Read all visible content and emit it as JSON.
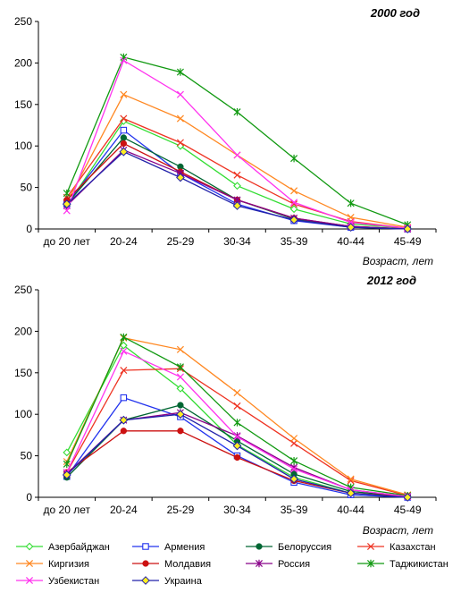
{
  "chart_data": [
    {
      "type": "line",
      "title": "2000 год",
      "xlabel": "Возраст, лет",
      "ylabel": "",
      "categories": [
        "до 20 лет",
        "20-24",
        "25-29",
        "30-34",
        "35-39",
        "40-44",
        "45-49"
      ],
      "ylim": [
        0,
        250
      ],
      "yticks": [
        0,
        50,
        100,
        150,
        200,
        250
      ],
      "series": [
        {
          "name": "Азербайджан",
          "values": [
            28,
            130,
            100,
            52,
            24,
            6,
            1
          ]
        },
        {
          "name": "Армения",
          "values": [
            30,
            119,
            67,
            30,
            10,
            2,
            0
          ]
        },
        {
          "name": "Белоруссия",
          "values": [
            30,
            110,
            75,
            35,
            12,
            3,
            0
          ]
        },
        {
          "name": "Казахстан",
          "values": [
            38,
            133,
            104,
            65,
            30,
            9,
            1
          ]
        },
        {
          "name": "Киргизия",
          "values": [
            32,
            162,
            133,
            89,
            46,
            14,
            2
          ]
        },
        {
          "name": "Молдавия",
          "values": [
            35,
            103,
            69,
            35,
            13,
            3,
            0
          ]
        },
        {
          "name": "Россия",
          "values": [
            28,
            95,
            67,
            35,
            13,
            3,
            0
          ]
        },
        {
          "name": "Таджикистан",
          "values": [
            43,
            207,
            189,
            141,
            85,
            31,
            5
          ]
        },
        {
          "name": "Узбекистан",
          "values": [
            22,
            203,
            162,
            89,
            32,
            8,
            1
          ]
        },
        {
          "name": "Украина",
          "values": [
            30,
            93,
            62,
            28,
            11,
            2,
            0
          ]
        }
      ]
    },
    {
      "type": "line",
      "title": "2012 год",
      "xlabel": "Возраст, лет",
      "ylabel": "",
      "categories": [
        "до 20 лет",
        "20-24",
        "25-29",
        "30-34",
        "35-39",
        "40-44",
        "45-49"
      ],
      "ylim": [
        0,
        250
      ],
      "yticks": [
        0,
        50,
        100,
        150,
        200,
        250
      ],
      "series": [
        {
          "name": "Азербайджан",
          "values": [
            54,
            183,
            131,
            63,
            24,
            5,
            1
          ]
        },
        {
          "name": "Армения",
          "values": [
            25,
            120,
            97,
            50,
            18,
            3,
            0
          ]
        },
        {
          "name": "Белоруссия",
          "values": [
            24,
            93,
            111,
            68,
            28,
            7,
            1
          ]
        },
        {
          "name": "Казахстан",
          "values": [
            30,
            153,
            155,
            110,
            65,
            20,
            2
          ]
        },
        {
          "name": "Киргизия",
          "values": [
            43,
            192,
            178,
            126,
            71,
            22,
            3
          ]
        },
        {
          "name": "Молдавия",
          "values": [
            30,
            80,
            80,
            48,
            20,
            5,
            1
          ]
        },
        {
          "name": "Россия",
          "values": [
            28,
            93,
            102,
            74,
            36,
            9,
            1
          ]
        },
        {
          "name": "Таджикистан",
          "values": [
            40,
            193,
            157,
            90,
            44,
            12,
            2
          ]
        },
        {
          "name": "Узбекистан",
          "values": [
            30,
            176,
            145,
            73,
            34,
            9,
            1
          ]
        },
        {
          "name": "Украина",
          "values": [
            27,
            93,
            100,
            62,
            22,
            5,
            0
          ]
        }
      ]
    }
  ],
  "legend": [
    {
      "name": "Азербайджан",
      "color": "#33dd33",
      "marker": "diamond-open"
    },
    {
      "name": "Армения",
      "color": "#2233ee",
      "marker": "square-open"
    },
    {
      "name": "Белоруссия",
      "color": "#006633",
      "marker": "circle-filled"
    },
    {
      "name": "Казахстан",
      "color": "#ee3322",
      "marker": "x"
    },
    {
      "name": "Киргизия",
      "color": "#ff8822",
      "marker": "x"
    },
    {
      "name": "Молдавия",
      "color": "#cc1111",
      "marker": "circle-filled"
    },
    {
      "name": "Россия",
      "color": "#880088",
      "marker": "star"
    },
    {
      "name": "Таджикистан",
      "color": "#119911",
      "marker": "star"
    },
    {
      "name": "Узбекистан",
      "color": "#ff33ee",
      "marker": "x"
    },
    {
      "name": "Украина",
      "color": "#2222aa",
      "marker": "diamond-yellow"
    }
  ]
}
